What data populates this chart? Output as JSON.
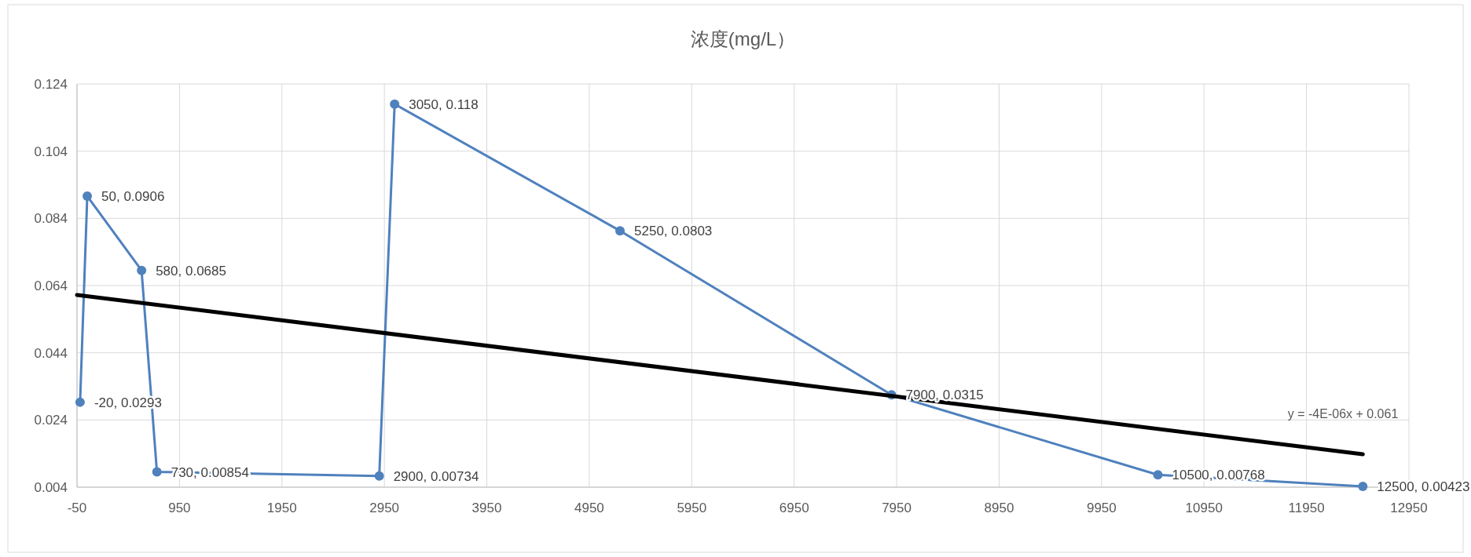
{
  "chart_data": {
    "type": "line",
    "title": "浓度(mg/L）",
    "x": [
      -20,
      50,
      580,
      730,
      2900,
      3050,
      5250,
      7900,
      10500,
      12500
    ],
    "series": [
      {
        "color": "#4f81bd",
        "marker": "circle",
        "values": [
          0.0293,
          0.0906,
          0.0685,
          0.00854,
          0.00734,
          0.118,
          0.0803,
          0.0315,
          0.00768,
          0.00423
        ],
        "value_labels": [
          "-20, 0.0293",
          "50, 0.0906",
          "580, 0.0685",
          "730, 0.00854",
          "2900, 0.00734",
          "3050, 0.118",
          "5250, 0.0803",
          "7900, 0.0315",
          "10500, 0.00768",
          "12500, 0.00423"
        ]
      },
      {
        "type": "line",
        "color": "#000000",
        "marker": "none",
        "x": [
          -50,
          12500
        ],
        "values": [
          0.0612,
          0.0138
        ]
      }
    ],
    "annotations": [
      "y = -4E-06x + 0.061"
    ],
    "xlim": [
      -50,
      12950
    ],
    "xticks": [
      -50,
      950,
      1950,
      2950,
      3950,
      4950,
      5950,
      6950,
      7950,
      8950,
      9950,
      10950,
      11950,
      12950
    ],
    "ylim": [
      0.004,
      0.124
    ],
    "yticks": [
      0.004,
      0.024,
      0.044,
      0.064,
      0.084,
      0.104,
      0.124
    ],
    "grid": true
  }
}
